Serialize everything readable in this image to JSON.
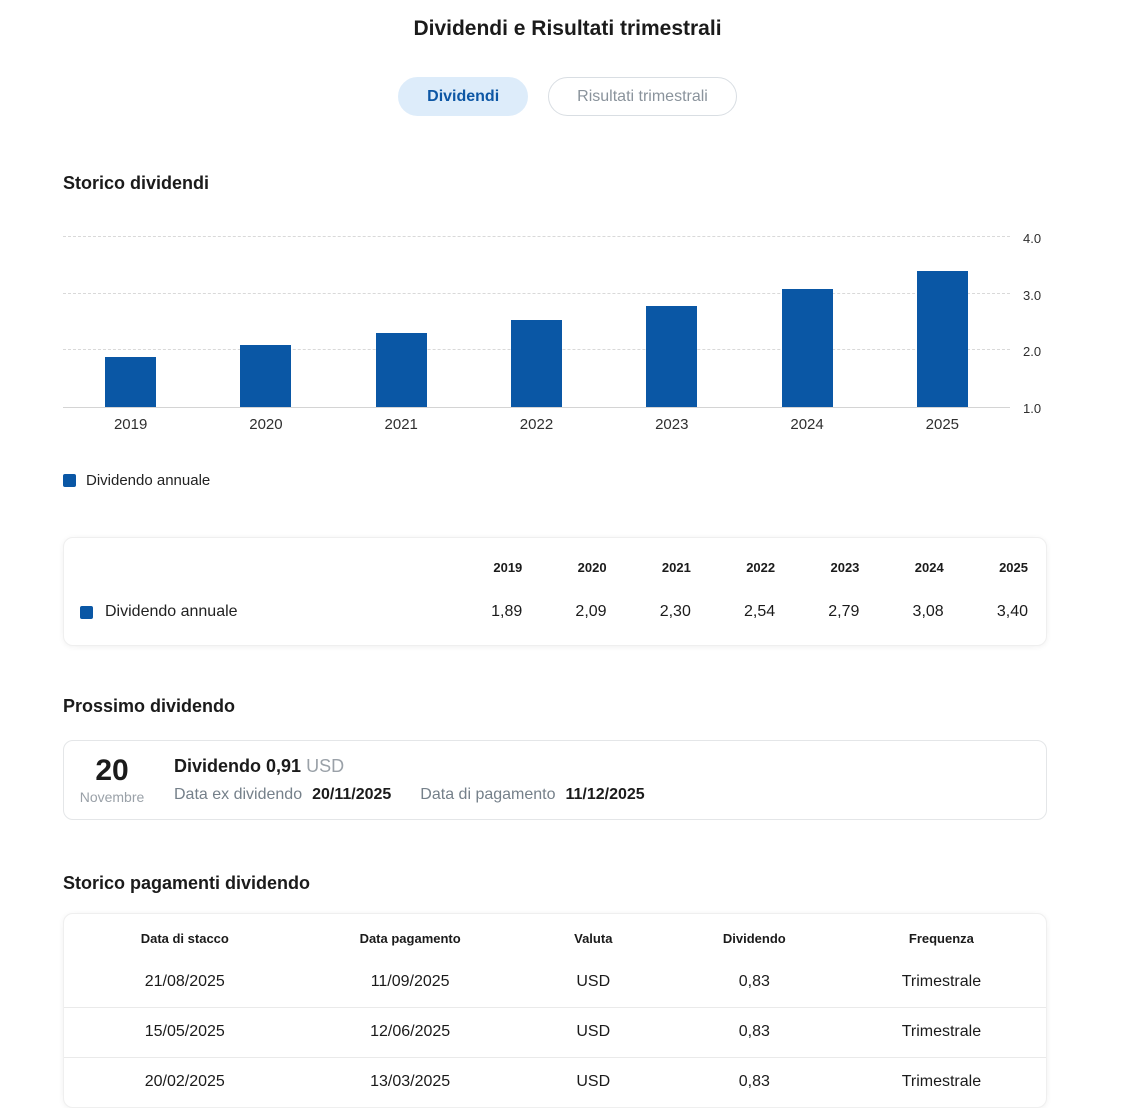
{
  "page": {
    "title": "Dividendi e Risultati trimestrali"
  },
  "tabs": [
    {
      "label": "Dividendi",
      "active": true
    },
    {
      "label": "Risultati trimestrali",
      "active": false
    }
  ],
  "colors": {
    "accent_blue": "#0a57a5",
    "tab_active_bg": "#ddecfa",
    "tab_active_text": "#0d57a5"
  },
  "dividend_history": {
    "heading": "Storico dividendi",
    "legend_label": "Dividendo annuale"
  },
  "chart_data": {
    "type": "bar",
    "title": "Storico dividendi",
    "categories": [
      "2019",
      "2020",
      "2021",
      "2022",
      "2023",
      "2024",
      "2025"
    ],
    "series": [
      {
        "name": "Dividendo annuale",
        "values": [
          1.89,
          2.09,
          2.3,
          2.54,
          2.79,
          3.08,
          3.4
        ]
      }
    ],
    "ylim": [
      1.0,
      4.0
    ],
    "yticks": [
      1.0,
      2.0,
      3.0,
      4.0
    ],
    "grid": true,
    "legend_position": "bottom-left",
    "bar_color": "#0a57a5"
  },
  "summary_table": {
    "row_label": "Dividendo annuale",
    "columns": [
      "2019",
      "2020",
      "2021",
      "2022",
      "2023",
      "2024",
      "2025"
    ],
    "values": [
      "1,89",
      "2,09",
      "2,30",
      "2,54",
      "2,79",
      "3,08",
      "3,40"
    ]
  },
  "next_dividend": {
    "heading": "Prossimo dividendo",
    "day": "20",
    "month": "Novembre",
    "dividend_label": "Dividendo",
    "dividend_value": "0,91",
    "currency": "USD",
    "ex_date_label": "Data ex dividendo",
    "ex_date": "20/11/2025",
    "pay_date_label": "Data di pagamento",
    "pay_date": "11/12/2025"
  },
  "payments": {
    "heading": "Storico pagamenti dividendo",
    "columns": [
      "Data di stacco",
      "Data pagamento",
      "Valuta",
      "Dividendo",
      "Frequenza"
    ],
    "col_widths": [
      "24.6%",
      "21.3%",
      "16.0%",
      "16.8%",
      "21.3%"
    ],
    "rows": [
      [
        "21/08/2025",
        "11/09/2025",
        "USD",
        "0,83",
        "Trimestrale"
      ],
      [
        "15/05/2025",
        "12/06/2025",
        "USD",
        "0,83",
        "Trimestrale"
      ],
      [
        "20/02/2025",
        "13/03/2025",
        "USD",
        "0,83",
        "Trimestrale"
      ]
    ]
  }
}
